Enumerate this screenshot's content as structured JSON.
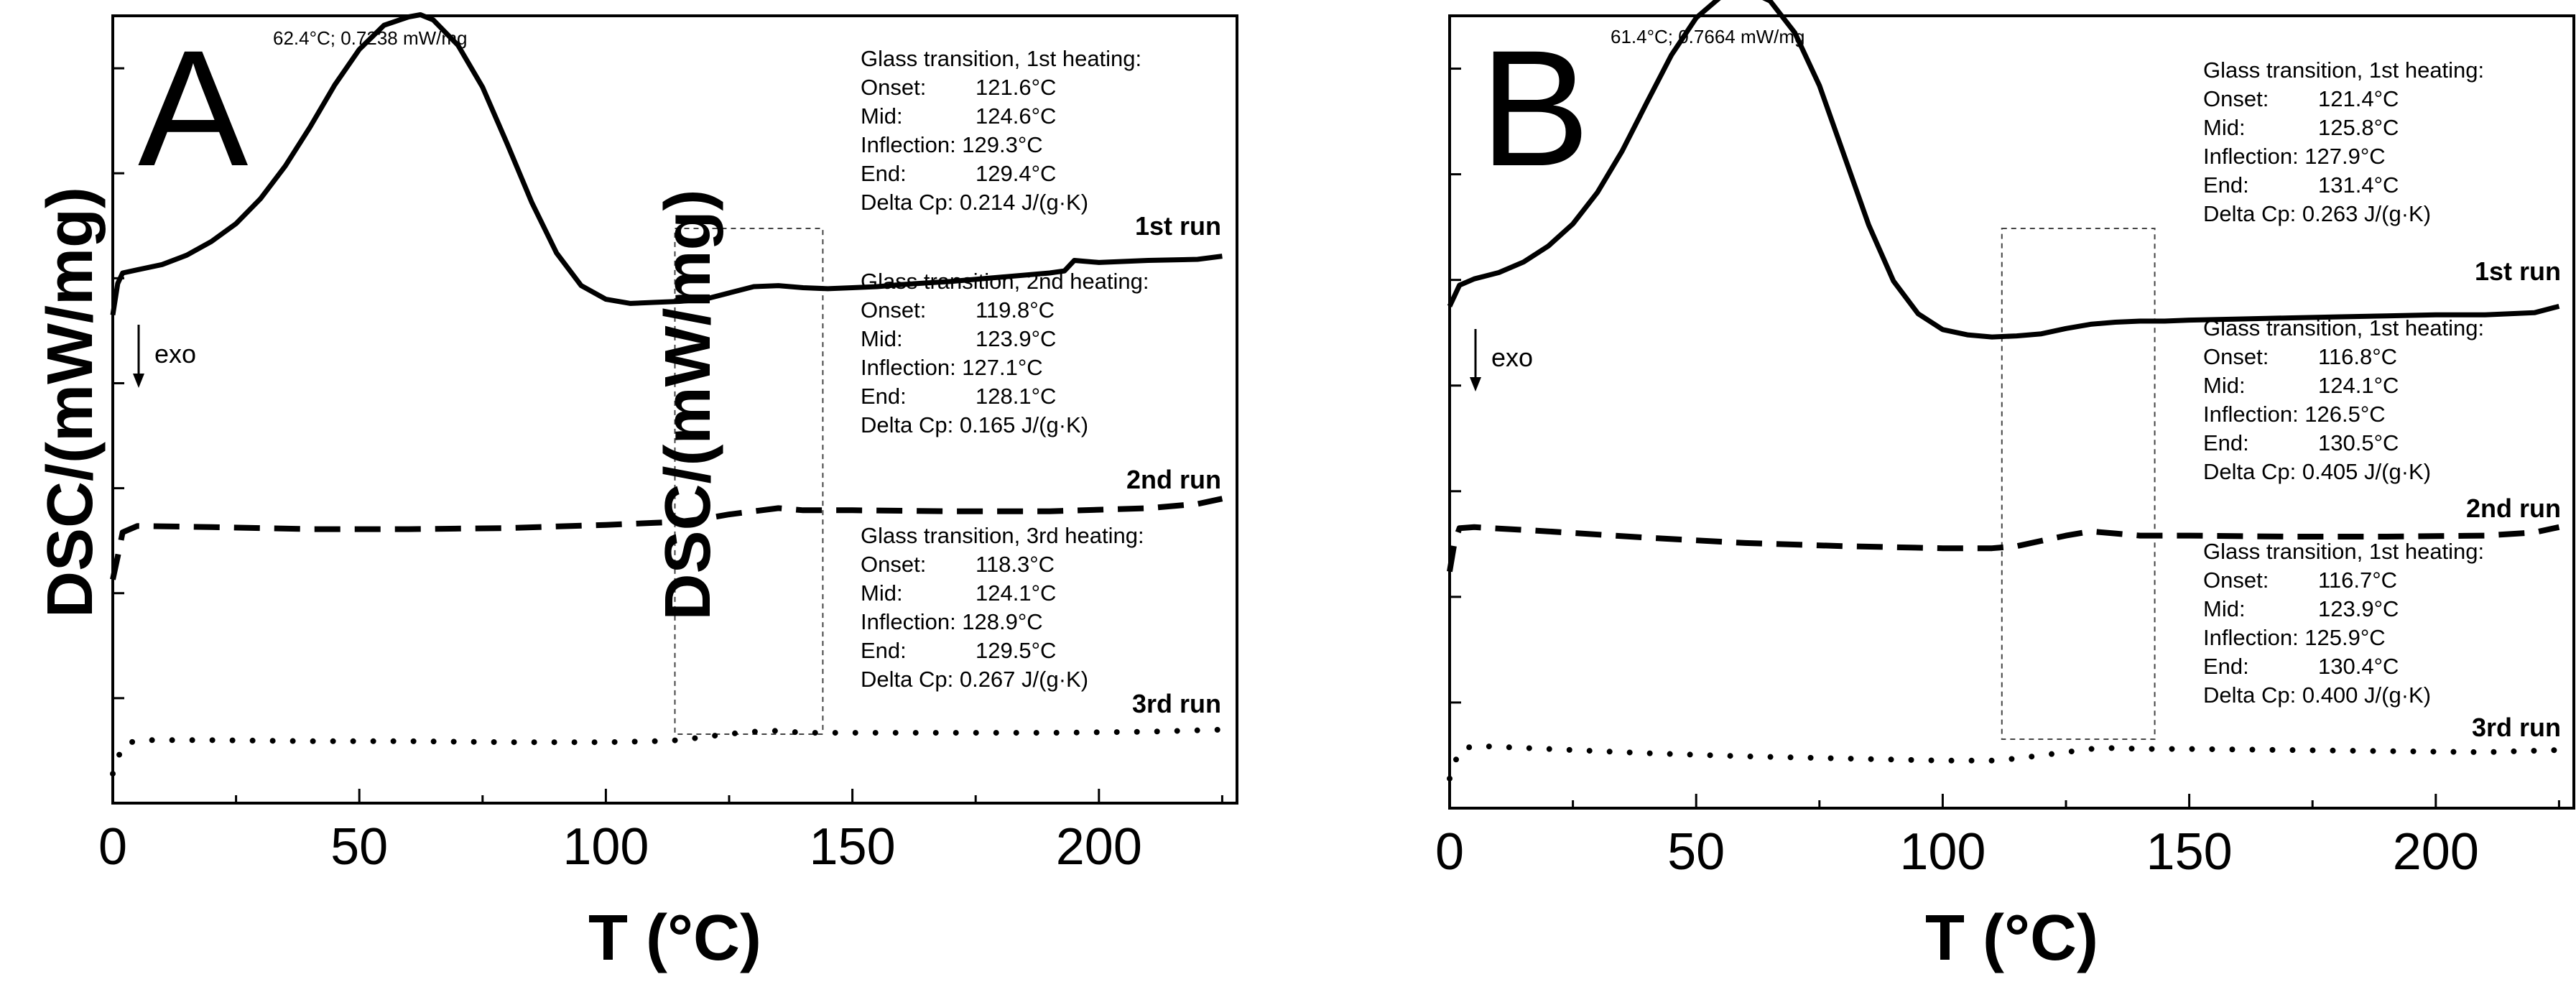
{
  "chart_data": [
    {
      "type": "line",
      "panel_label": "A",
      "xlabel": "T (°C)",
      "ylabel": "DSC/(mW/mg)",
      "xlim": [
        0,
        228
      ],
      "ylim": [
        0,
        7.5
      ],
      "x_ticks": [
        0,
        50,
        100,
        150,
        200
      ],
      "x_tick_labels": [
        "0",
        "50",
        "100",
        "150",
        "200"
      ],
      "y_ticks": [
        1,
        2,
        3,
        4,
        5,
        6,
        7
      ],
      "peak_label": "62.4°C; 0.7238 mW/mg",
      "exo_label": "exo",
      "highlight_region": [
        114,
        144
      ],
      "series": [
        {
          "name": "1st run",
          "style": "solid",
          "x": [
            0,
            1,
            2,
            5,
            10,
            15,
            20,
            25,
            30,
            35,
            40,
            45,
            50,
            55,
            60,
            62.4,
            65,
            70,
            75,
            80,
            85,
            90,
            95,
            100,
            105,
            110,
            115,
            120,
            125,
            130,
            135,
            140,
            145,
            150,
            155,
            160,
            170,
            180,
            190,
            193,
            195,
            200,
            210,
            220,
            225
          ],
          "y": [
            4.65,
            4.95,
            5.05,
            5.08,
            5.13,
            5.22,
            5.35,
            5.52,
            5.76,
            6.07,
            6.44,
            6.84,
            7.18,
            7.41,
            7.49,
            7.51,
            7.46,
            7.22,
            6.82,
            6.28,
            5.72,
            5.24,
            4.93,
            4.8,
            4.76,
            4.77,
            4.78,
            4.8,
            4.86,
            4.92,
            4.93,
            4.91,
            4.9,
            4.91,
            4.92,
            4.94,
            4.97,
            5.01,
            5.05,
            5.07,
            5.17,
            5.15,
            5.17,
            5.18,
            5.21
          ]
        },
        {
          "name": "2nd run",
          "style": "dashed",
          "x": [
            0,
            1,
            2,
            5,
            20,
            40,
            60,
            80,
            100,
            110,
            115,
            120,
            125,
            130,
            135,
            140,
            150,
            170,
            190,
            210,
            220,
            225
          ],
          "y": [
            2.13,
            2.35,
            2.58,
            2.64,
            2.63,
            2.61,
            2.61,
            2.62,
            2.65,
            2.67,
            2.68,
            2.71,
            2.75,
            2.78,
            2.81,
            2.79,
            2.79,
            2.78,
            2.78,
            2.81,
            2.85,
            2.9
          ]
        },
        {
          "name": "3rd run",
          "style": "dotted",
          "x": [
            0,
            1,
            2,
            5,
            20,
            40,
            60,
            80,
            100,
            110,
            115,
            120,
            125,
            130,
            135,
            140,
            150,
            170,
            190,
            210,
            225
          ],
          "y": [
            0.28,
            0.42,
            0.55,
            0.6,
            0.6,
            0.59,
            0.59,
            0.58,
            0.58,
            0.59,
            0.6,
            0.63,
            0.66,
            0.68,
            0.69,
            0.67,
            0.67,
            0.67,
            0.67,
            0.68,
            0.7
          ]
        }
      ],
      "annotations": [
        {
          "run_label": "1st run",
          "lines": [
            "Glass transition, 1st heating:",
            "Onset:",
            "121.6°C",
            "Mid:",
            "124.6°C",
            "Inflection: 129.3°C",
            "End:",
            "129.4°C",
            "Delta Cp:  0.214 J/(g·K)"
          ]
        },
        {
          "run_label": "2nd run",
          "lines": [
            "Glass transition, 2nd heating:",
            "Onset:",
            "119.8°C",
            "Mid:",
            "123.9°C",
            "Inflection: 127.1°C",
            "End:",
            "128.1°C",
            "Delta Cp:  0.165 J/(g·K)"
          ]
        },
        {
          "run_label": "3rd run",
          "lines": [
            "Glass transition, 3rd heating:",
            "Onset:",
            "118.3°C",
            "Mid:",
            "124.1°C",
            "Inflection: 128.9°C",
            "End:",
            "129.5°C",
            "Delta Cp:  0.267 J/(g·K)"
          ]
        }
      ]
    },
    {
      "type": "line",
      "panel_label": "B",
      "xlabel": "T (°C)",
      "ylabel": "DSC/(mW/mg)",
      "xlim": [
        0,
        228
      ],
      "ylim": [
        0,
        7.5
      ],
      "x_ticks": [
        0,
        50,
        100,
        150,
        200
      ],
      "x_tick_labels": [
        "0",
        "50",
        "100",
        "150",
        "200"
      ],
      "y_ticks": [
        1,
        2,
        3,
        4,
        5,
        6,
        7
      ],
      "peak_label": "61.4°C; 0.7664 mW/mg",
      "exo_label": "exo",
      "highlight_region": [
        112,
        143
      ],
      "series": [
        {
          "name": "1st run",
          "style": "solid",
          "x": [
            0,
            1,
            2,
            5,
            10,
            15,
            20,
            25,
            30,
            35,
            40,
            45,
            50,
            55,
            60,
            61.4,
            65,
            70,
            75,
            80,
            85,
            90,
            95,
            100,
            105,
            110,
            115,
            120,
            125,
            130,
            135,
            140,
            145,
            150,
            160,
            170,
            180,
            190,
            200,
            210,
            220,
            225
          ],
          "y": [
            4.75,
            4.85,
            4.95,
            5.01,
            5.07,
            5.17,
            5.32,
            5.53,
            5.83,
            6.22,
            6.68,
            7.13,
            7.48,
            7.68,
            7.72,
            7.72,
            7.64,
            7.34,
            6.84,
            6.18,
            5.52,
            4.99,
            4.68,
            4.53,
            4.48,
            4.46,
            4.47,
            4.49,
            4.54,
            4.58,
            4.6,
            4.61,
            4.61,
            4.62,
            4.63,
            4.64,
            4.65,
            4.66,
            4.67,
            4.67,
            4.69,
            4.75
          ]
        },
        {
          "name": "2nd run",
          "style": "dashed",
          "x": [
            0,
            1,
            2,
            5,
            20,
            40,
            60,
            80,
            100,
            110,
            115,
            120,
            125,
            130,
            135,
            140,
            150,
            170,
            190,
            210,
            220,
            225
          ],
          "y": [
            2.24,
            2.52,
            2.65,
            2.66,
            2.62,
            2.56,
            2.51,
            2.48,
            2.46,
            2.46,
            2.48,
            2.53,
            2.58,
            2.62,
            2.6,
            2.58,
            2.58,
            2.57,
            2.57,
            2.58,
            2.61,
            2.66
          ]
        },
        {
          "name": "3rd run",
          "style": "dotted",
          "x": [
            0,
            1,
            2,
            5,
            20,
            40,
            60,
            80,
            100,
            110,
            115,
            120,
            125,
            130,
            135,
            140,
            150,
            170,
            190,
            210,
            225
          ],
          "y": [
            0.28,
            0.42,
            0.55,
            0.59,
            0.56,
            0.52,
            0.49,
            0.47,
            0.45,
            0.45,
            0.47,
            0.5,
            0.53,
            0.56,
            0.57,
            0.56,
            0.56,
            0.55,
            0.54,
            0.53,
            0.55
          ]
        }
      ],
      "annotations": [
        {
          "run_label": "1st run",
          "lines": [
            "Glass transition, 1st heating:",
            "Onset:",
            "121.4°C",
            "Mid:",
            "125.8°C",
            "Inflection: 127.9°C",
            "End:",
            "131.4°C",
            "Delta Cp:  0.263 J/(g·K)"
          ]
        },
        {
          "run_label": "2nd run",
          "lines": [
            "Glass transition, 1st heating:",
            "Onset:",
            "116.8°C",
            "Mid:",
            "124.1°C",
            "Inflection: 126.5°C",
            "End:",
            "130.5°C",
            "Delta Cp:  0.405 J/(g·K)"
          ]
        },
        {
          "run_label": "3rd run",
          "lines": [
            "Glass transition, 1st heating:",
            "Onset:",
            "116.7°C",
            "Mid:",
            "123.9°C",
            "Inflection: 125.9°C",
            "End:",
            "130.4°C",
            "Delta Cp:  0.400 J/(g·K)"
          ]
        }
      ]
    }
  ]
}
